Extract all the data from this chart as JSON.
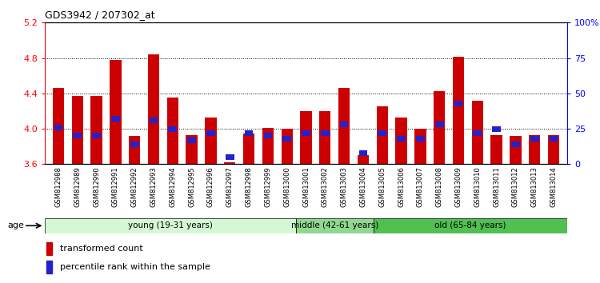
{
  "title": "GDS3942 / 207302_at",
  "samples": [
    "GSM812988",
    "GSM812989",
    "GSM812990",
    "GSM812991",
    "GSM812992",
    "GSM812993",
    "GSM812994",
    "GSM812995",
    "GSM812996",
    "GSM812997",
    "GSM812998",
    "GSM812999",
    "GSM813000",
    "GSM813001",
    "GSM813002",
    "GSM813003",
    "GSM813004",
    "GSM813005",
    "GSM813006",
    "GSM813007",
    "GSM813008",
    "GSM813009",
    "GSM813010",
    "GSM813011",
    "GSM813012",
    "GSM813013",
    "GSM813014"
  ],
  "transformed_count": [
    4.46,
    4.37,
    4.37,
    4.78,
    3.92,
    4.84,
    4.35,
    3.93,
    4.13,
    3.62,
    3.95,
    4.01,
    4.0,
    4.2,
    4.2,
    4.46,
    3.7,
    4.25,
    4.13,
    4.0,
    4.43,
    4.81,
    4.32,
    3.93,
    3.92,
    3.93,
    3.93
  ],
  "percentile_rank": [
    26,
    20,
    20,
    32,
    14,
    31,
    25,
    17,
    22,
    5,
    22,
    20,
    18,
    22,
    22,
    28,
    8,
    22,
    18,
    18,
    28,
    43,
    22,
    25,
    14,
    18,
    18
  ],
  "bar_color_red": "#CC0000",
  "bar_color_blue": "#2222CC",
  "ymin": 3.6,
  "ymax": 5.2,
  "yticks_left": [
    3.6,
    4.0,
    4.4,
    4.8,
    5.2
  ],
  "yticks_right": [
    0,
    25,
    50,
    75,
    100
  ],
  "grid_values": [
    4.0,
    4.4,
    4.8
  ],
  "groups": [
    {
      "label": "young (19-31 years)",
      "start": 0,
      "end": 13,
      "color": "#d4f7d4"
    },
    {
      "label": "middle (42-61 years)",
      "start": 13,
      "end": 17,
      "color": "#90d890"
    },
    {
      "label": "old (65-84 years)",
      "start": 17,
      "end": 27,
      "color": "#50c050"
    }
  ],
  "age_label": "age",
  "legend_red": "transformed count",
  "legend_blue": "percentile rank within the sample",
  "bg_color": "#ffffff",
  "percentile_scale_max": 100,
  "bar_width": 0.6
}
